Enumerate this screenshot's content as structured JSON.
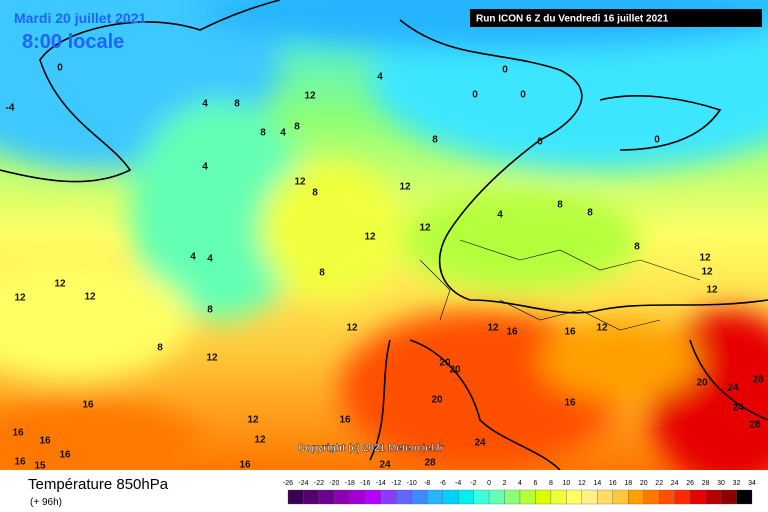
{
  "header": {
    "date": "Mardi 20 juillet 2021",
    "time": "8:00 locale",
    "run": "Run ICON 6 Z du Vendredi 16 juillet 2021"
  },
  "copyright": "Copyright (c) 2021 Meteociel.fr",
  "footer": {
    "title": "Température 850hPa",
    "lead": "(+ 96h)"
  },
  "legend": {
    "ticks": [
      -26,
      -24,
      -22,
      -20,
      -18,
      -16,
      -14,
      -12,
      -10,
      -8,
      -6,
      -4,
      -2,
      0,
      2,
      4,
      6,
      8,
      10,
      12,
      14,
      16,
      18,
      20,
      22,
      24,
      26,
      28,
      30,
      32,
      34
    ],
    "colors": [
      "#3c0050",
      "#55006e",
      "#6e0090",
      "#8c00b4",
      "#a000d2",
      "#b400ff",
      "#8c3cff",
      "#6464ff",
      "#3c8cff",
      "#28b4ff",
      "#00d2ff",
      "#00f0f0",
      "#3cffdc",
      "#64ffb4",
      "#8cff78",
      "#b4ff3c",
      "#dcff00",
      "#f0ff3c",
      "#ffff64",
      "#fff08c",
      "#ffdc64",
      "#ffc83c",
      "#ffa000",
      "#ff7800",
      "#ff5000",
      "#ff2800",
      "#e60000",
      "#b40000",
      "#8c0000",
      "#000000"
    ]
  },
  "map": {
    "contour_labels": [
      "0",
      "-4",
      "4",
      "8",
      "12",
      "4",
      "0",
      "0",
      "0",
      "0",
      "0",
      "8",
      "4",
      "8",
      "8",
      "4",
      "12",
      "8",
      "12",
      "4",
      "8",
      "8",
      "8",
      "12",
      "12",
      "12",
      "12",
      "12",
      "4",
      "4",
      "8",
      "8",
      "12",
      "8",
      "12",
      "12",
      "16",
      "16",
      "12",
      "12",
      "12",
      "12",
      "20",
      "20",
      "20",
      "20",
      "24",
      "28",
      "24",
      "16",
      "24",
      "24",
      "28",
      "16",
      "16",
      "16",
      "16",
      "16",
      "12",
      "12",
      "16",
      "16",
      "28",
      "15"
    ]
  }
}
